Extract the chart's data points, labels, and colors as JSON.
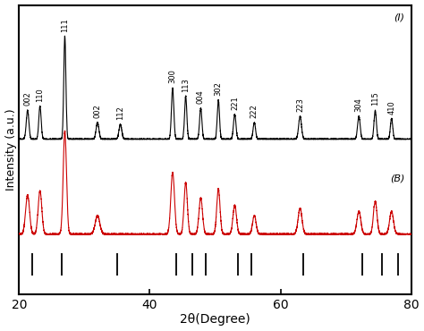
{
  "xlim": [
    20,
    80
  ],
  "xlabel": "2θ(Degree)",
  "ylabel": "Intensity (a.u.)",
  "color_I": "#000000",
  "color_B": "#cc0000",
  "label_I": "(I)",
  "label_B": "(B)",
  "peaks_I_pos": [
    21.3,
    23.2,
    27.0,
    32.0,
    35.5,
    43.5,
    45.5,
    47.8,
    50.5,
    53.0,
    56.0,
    63.0,
    72.0,
    74.5,
    77.0
  ],
  "peaks_I_width": [
    0.2,
    0.18,
    0.16,
    0.22,
    0.22,
    0.18,
    0.17,
    0.18,
    0.17,
    0.19,
    0.19,
    0.22,
    0.2,
    0.18,
    0.18
  ],
  "peaks_I_height": [
    0.28,
    0.32,
    1.0,
    0.16,
    0.14,
    0.5,
    0.42,
    0.3,
    0.38,
    0.24,
    0.16,
    0.22,
    0.22,
    0.28,
    0.2
  ],
  "peaks_B_pos": [
    21.3,
    23.2,
    27.0,
    32.0,
    43.5,
    45.5,
    47.8,
    50.5,
    53.0,
    56.0,
    63.0,
    72.0,
    74.5,
    77.0
  ],
  "peaks_B_width": [
    0.3,
    0.28,
    0.25,
    0.35,
    0.28,
    0.25,
    0.27,
    0.25,
    0.27,
    0.27,
    0.3,
    0.3,
    0.27,
    0.3
  ],
  "peaks_B_height": [
    0.38,
    0.42,
    1.0,
    0.18,
    0.6,
    0.5,
    0.35,
    0.44,
    0.28,
    0.18,
    0.25,
    0.22,
    0.32,
    0.22
  ],
  "ref_lines": [
    22.0,
    26.5,
    35.0,
    44.0,
    46.5,
    48.5,
    53.5,
    55.5,
    63.5,
    72.5,
    75.5,
    78.0
  ],
  "peak_labels": [
    [
      "002",
      21.3,
      0
    ],
    [
      "110",
      23.2,
      0
    ],
    [
      "111",
      27.0,
      1
    ],
    [
      "002",
      32.0,
      0
    ],
    [
      "112",
      35.5,
      0
    ],
    [
      "300",
      43.5,
      1
    ],
    [
      "113",
      45.5,
      1
    ],
    [
      "004",
      47.8,
      0
    ],
    [
      "302",
      50.5,
      1
    ],
    [
      "221",
      53.0,
      0
    ],
    [
      "222",
      56.0,
      0
    ],
    [
      "223",
      63.0,
      0
    ],
    [
      "304",
      72.0,
      0
    ],
    [
      "115",
      74.5,
      1
    ],
    [
      "410",
      77.0,
      0
    ]
  ]
}
